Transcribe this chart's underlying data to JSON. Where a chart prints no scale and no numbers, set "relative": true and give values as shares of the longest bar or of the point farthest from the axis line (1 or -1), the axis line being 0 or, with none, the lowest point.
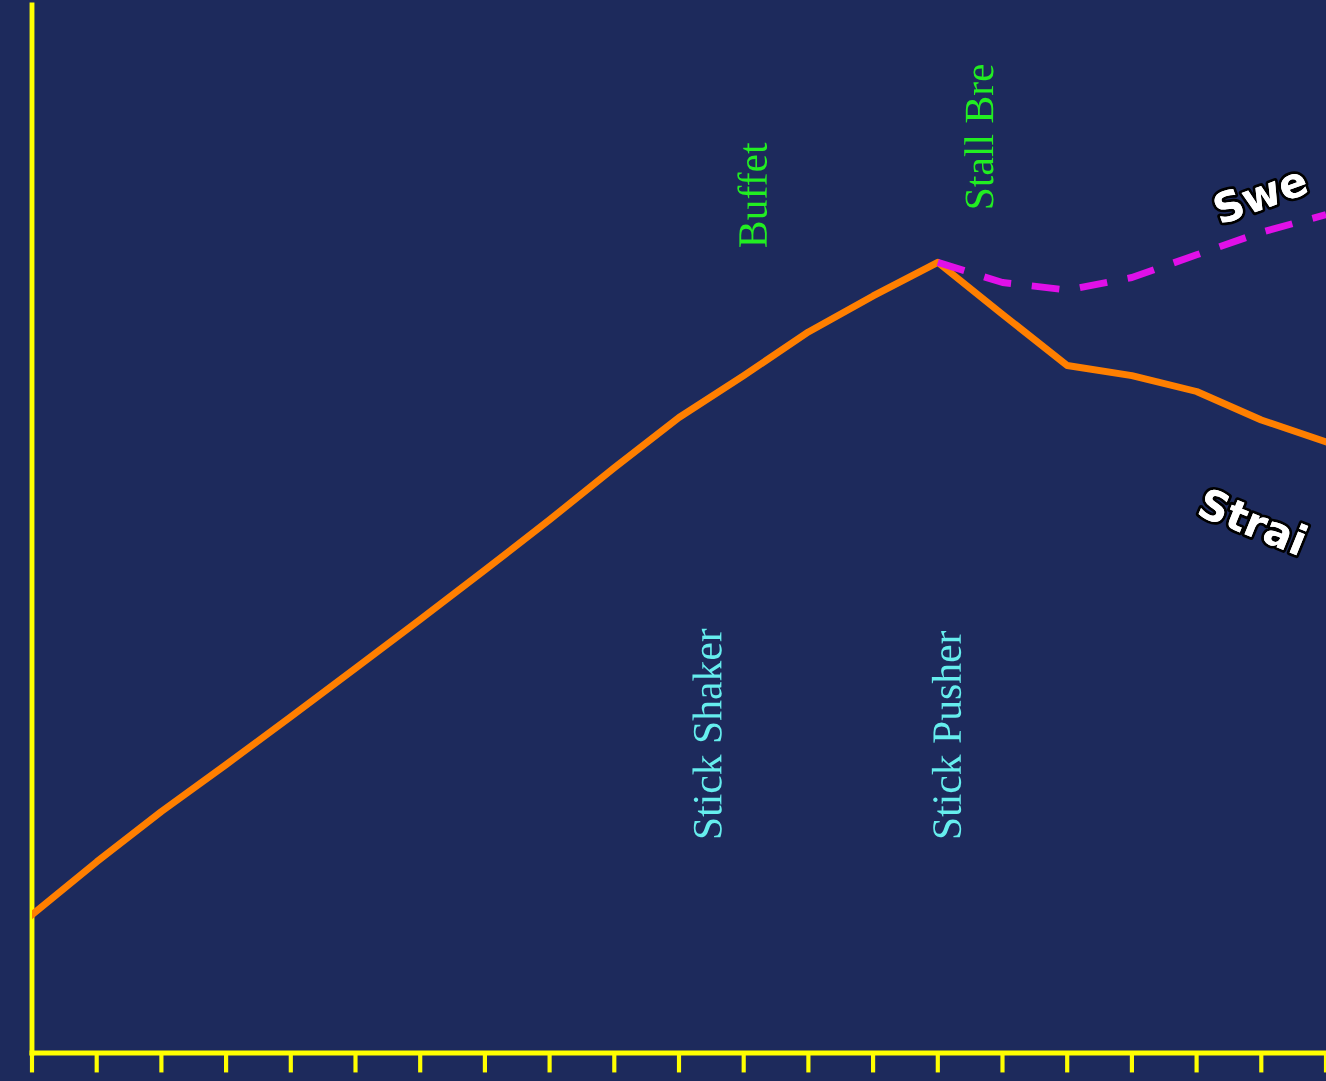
{
  "chart_data": {
    "type": "line",
    "relative": true,
    "grid": false,
    "legend": false,
    "categories": [
      null,
      null,
      null,
      null,
      null,
      null,
      null,
      null,
      null,
      null,
      null,
      null,
      null,
      null,
      null,
      null,
      null,
      null,
      null,
      null,
      null
    ],
    "series": [
      {
        "name": "Strai",
        "color": "#ff7f00",
        "line_style": "solid",
        "values": [
          0.165,
          0.228,
          0.288,
          0.344,
          0.401,
          0.459,
          0.517,
          0.576,
          0.636,
          0.698,
          0.758,
          0.808,
          0.86,
          0.903,
          0.943,
          0.881,
          0.82,
          0.808,
          0.789,
          0.755,
          0.729
        ]
      },
      {
        "name": "Swe",
        "color": "#e010e8",
        "line_style": "dashed",
        "values": [
          null,
          null,
          null,
          null,
          null,
          null,
          null,
          null,
          null,
          null,
          null,
          null,
          null,
          null,
          0.943,
          0.919,
          0.91,
          0.925,
          0.952,
          0.979,
          1
        ]
      }
    ],
    "annotations": [
      "Buffet",
      "Stall Bre",
      "Stick Shaker",
      "Stick Pusher"
    ]
  }
}
